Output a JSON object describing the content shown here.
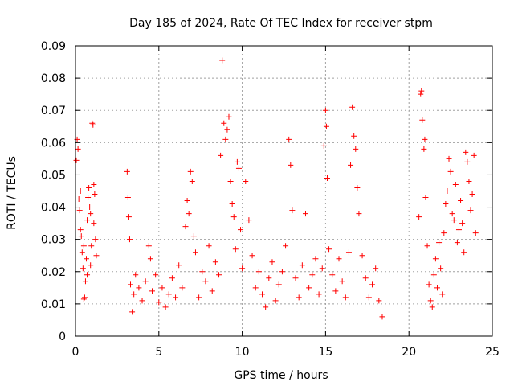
{
  "chart_data": {
    "type": "scatter",
    "title": "Day 185 of 2024, Rate Of TEC Index for receiver stpm",
    "xlabel": "GPS time / hours",
    "ylabel": "ROTI / TECUs",
    "xlim": [
      0,
      25
    ],
    "ylim": [
      0,
      0.09
    ],
    "xticks": [
      0,
      5,
      10,
      15,
      20,
      25
    ],
    "xtick_labels": [
      "0",
      "5",
      "10",
      "15",
      "20",
      "25"
    ],
    "yticks": [
      0,
      0.01,
      0.02,
      0.03,
      0.04,
      0.05,
      0.06,
      0.07,
      0.08,
      0.09
    ],
    "ytick_labels": [
      "0",
      "0.01",
      "0.02",
      "0.03",
      "0.04",
      "0.05",
      "0.06",
      "0.07",
      "0.08",
      "0.09"
    ],
    "grid": true,
    "marker": "+",
    "color": "#ff0000",
    "series": [
      {
        "name": "ROTI",
        "points": [
          [
            0.05,
            0.0545
          ],
          [
            0.1,
            0.061
          ],
          [
            0.15,
            0.058
          ],
          [
            0.2,
            0.0425
          ],
          [
            0.25,
            0.039
          ],
          [
            0.3,
            0.033
          ],
          [
            0.35,
            0.031
          ],
          [
            0.4,
            0.026
          ],
          [
            0.45,
            0.021
          ],
          [
            0.5,
            0.0115
          ],
          [
            0.55,
            0.012
          ],
          [
            0.6,
            0.017
          ],
          [
            0.65,
            0.024
          ],
          [
            0.7,
            0.036
          ],
          [
            0.75,
            0.043
          ],
          [
            0.8,
            0.046
          ],
          [
            0.85,
            0.04
          ],
          [
            0.9,
            0.038
          ],
          [
            0.95,
            0.028
          ],
          [
            1.0,
            0.066
          ],
          [
            1.05,
            0.0655
          ],
          [
            1.1,
            0.047
          ],
          [
            1.15,
            0.044
          ],
          [
            1.2,
            0.03
          ],
          [
            1.25,
            0.025
          ],
          [
            0.3,
            0.045
          ],
          [
            0.5,
            0.028
          ],
          [
            0.7,
            0.019
          ],
          [
            0.9,
            0.022
          ],
          [
            1.1,
            0.035
          ],
          [
            3.1,
            0.051
          ],
          [
            3.15,
            0.043
          ],
          [
            3.2,
            0.037
          ],
          [
            3.25,
            0.03
          ],
          [
            3.3,
            0.016
          ],
          [
            3.4,
            0.0075
          ],
          [
            3.5,
            0.013
          ],
          [
            3.6,
            0.019
          ],
          [
            3.8,
            0.015
          ],
          [
            4.0,
            0.011
          ],
          [
            4.2,
            0.017
          ],
          [
            4.4,
            0.028
          ],
          [
            4.5,
            0.024
          ],
          [
            4.6,
            0.014
          ],
          [
            4.8,
            0.019
          ],
          [
            5.0,
            0.0105
          ],
          [
            5.2,
            0.015
          ],
          [
            5.4,
            0.009
          ],
          [
            5.6,
            0.013
          ],
          [
            5.8,
            0.018
          ],
          [
            6.0,
            0.012
          ],
          [
            6.2,
            0.022
          ],
          [
            6.4,
            0.015
          ],
          [
            6.6,
            0.034
          ],
          [
            6.7,
            0.042
          ],
          [
            6.8,
            0.038
          ],
          [
            6.9,
            0.051
          ],
          [
            7.0,
            0.048
          ],
          [
            7.1,
            0.031
          ],
          [
            7.2,
            0.026
          ],
          [
            7.4,
            0.012
          ],
          [
            7.6,
            0.02
          ],
          [
            7.8,
            0.017
          ],
          [
            8.0,
            0.028
          ],
          [
            8.2,
            0.014
          ],
          [
            8.4,
            0.023
          ],
          [
            8.6,
            0.019
          ],
          [
            8.7,
            0.056
          ],
          [
            8.8,
            0.0855
          ],
          [
            8.9,
            0.066
          ],
          [
            9.0,
            0.061
          ],
          [
            9.1,
            0.064
          ],
          [
            9.2,
            0.068
          ],
          [
            9.3,
            0.048
          ],
          [
            9.4,
            0.041
          ],
          [
            9.5,
            0.037
          ],
          [
            9.6,
            0.027
          ],
          [
            9.7,
            0.054
          ],
          [
            9.8,
            0.052
          ],
          [
            9.9,
            0.033
          ],
          [
            10.0,
            0.021
          ],
          [
            10.2,
            0.048
          ],
          [
            10.4,
            0.036
          ],
          [
            10.6,
            0.025
          ],
          [
            10.8,
            0.015
          ],
          [
            11.0,
            0.02
          ],
          [
            11.2,
            0.013
          ],
          [
            11.4,
            0.009
          ],
          [
            11.6,
            0.018
          ],
          [
            11.8,
            0.023
          ],
          [
            12.0,
            0.011
          ],
          [
            12.2,
            0.016
          ],
          [
            12.4,
            0.02
          ],
          [
            12.6,
            0.028
          ],
          [
            12.8,
            0.061
          ],
          [
            12.9,
            0.053
          ],
          [
            13.0,
            0.039
          ],
          [
            13.2,
            0.018
          ],
          [
            13.4,
            0.012
          ],
          [
            13.6,
            0.022
          ],
          [
            13.8,
            0.038
          ],
          [
            14.0,
            0.015
          ],
          [
            14.2,
            0.019
          ],
          [
            14.4,
            0.024
          ],
          [
            14.6,
            0.013
          ],
          [
            14.8,
            0.021
          ],
          [
            14.9,
            0.059
          ],
          [
            15.0,
            0.07
          ],
          [
            15.05,
            0.065
          ],
          [
            15.1,
            0.049
          ],
          [
            15.2,
            0.027
          ],
          [
            15.4,
            0.019
          ],
          [
            15.6,
            0.014
          ],
          [
            15.8,
            0.024
          ],
          [
            16.0,
            0.017
          ],
          [
            16.2,
            0.012
          ],
          [
            16.4,
            0.026
          ],
          [
            16.5,
            0.053
          ],
          [
            16.6,
            0.071
          ],
          [
            16.7,
            0.062
          ],
          [
            16.8,
            0.058
          ],
          [
            16.9,
            0.046
          ],
          [
            17.0,
            0.038
          ],
          [
            17.2,
            0.025
          ],
          [
            17.4,
            0.018
          ],
          [
            17.6,
            0.012
          ],
          [
            17.8,
            0.016
          ],
          [
            18.0,
            0.021
          ],
          [
            18.2,
            0.011
          ],
          [
            18.4,
            0.006
          ],
          [
            20.6,
            0.037
          ],
          [
            20.7,
            0.075
          ],
          [
            20.75,
            0.076
          ],
          [
            20.8,
            0.067
          ],
          [
            20.9,
            0.058
          ],
          [
            20.95,
            0.061
          ],
          [
            21.0,
            0.043
          ],
          [
            21.1,
            0.028
          ],
          [
            21.2,
            0.016
          ],
          [
            21.3,
            0.011
          ],
          [
            21.4,
            0.009
          ],
          [
            21.5,
            0.019
          ],
          [
            21.6,
            0.024
          ],
          [
            21.7,
            0.015
          ],
          [
            21.8,
            0.029
          ],
          [
            21.9,
            0.021
          ],
          [
            22.0,
            0.013
          ],
          [
            22.1,
            0.032
          ],
          [
            22.2,
            0.041
          ],
          [
            22.3,
            0.045
          ],
          [
            22.4,
            0.055
          ],
          [
            22.5,
            0.051
          ],
          [
            22.6,
            0.038
          ],
          [
            22.7,
            0.036
          ],
          [
            22.8,
            0.047
          ],
          [
            22.9,
            0.029
          ],
          [
            23.0,
            0.033
          ],
          [
            23.1,
            0.042
          ],
          [
            23.2,
            0.035
          ],
          [
            23.3,
            0.026
          ],
          [
            23.4,
            0.057
          ],
          [
            23.5,
            0.054
          ],
          [
            23.6,
            0.048
          ],
          [
            23.7,
            0.039
          ],
          [
            23.8,
            0.044
          ],
          [
            23.9,
            0.056
          ],
          [
            24.0,
            0.032
          ]
        ]
      }
    ]
  }
}
